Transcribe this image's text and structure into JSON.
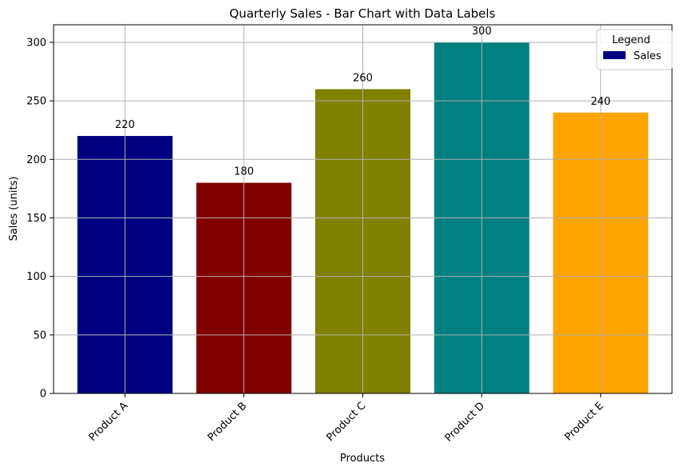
{
  "chart_data": {
    "type": "bar",
    "title": "Quarterly Sales - Bar Chart with Data Labels",
    "xlabel": "Products",
    "ylabel": "Sales (units)",
    "categories": [
      "Product A",
      "Product B",
      "Product C",
      "Product D",
      "Product E"
    ],
    "values": [
      220,
      180,
      260,
      300,
      240
    ],
    "bar_colors": [
      "#000080",
      "#800000",
      "#808000",
      "#008080",
      "#ffa500"
    ],
    "ylim": [
      0,
      315
    ],
    "yticks": [
      0,
      50,
      100,
      150,
      200,
      250,
      300
    ],
    "grid": true,
    "legend": {
      "title": "Legend",
      "entries": [
        {
          "name": "Sales",
          "color": "#000080"
        }
      ],
      "placement": "top-right"
    },
    "data_labels": true
  }
}
